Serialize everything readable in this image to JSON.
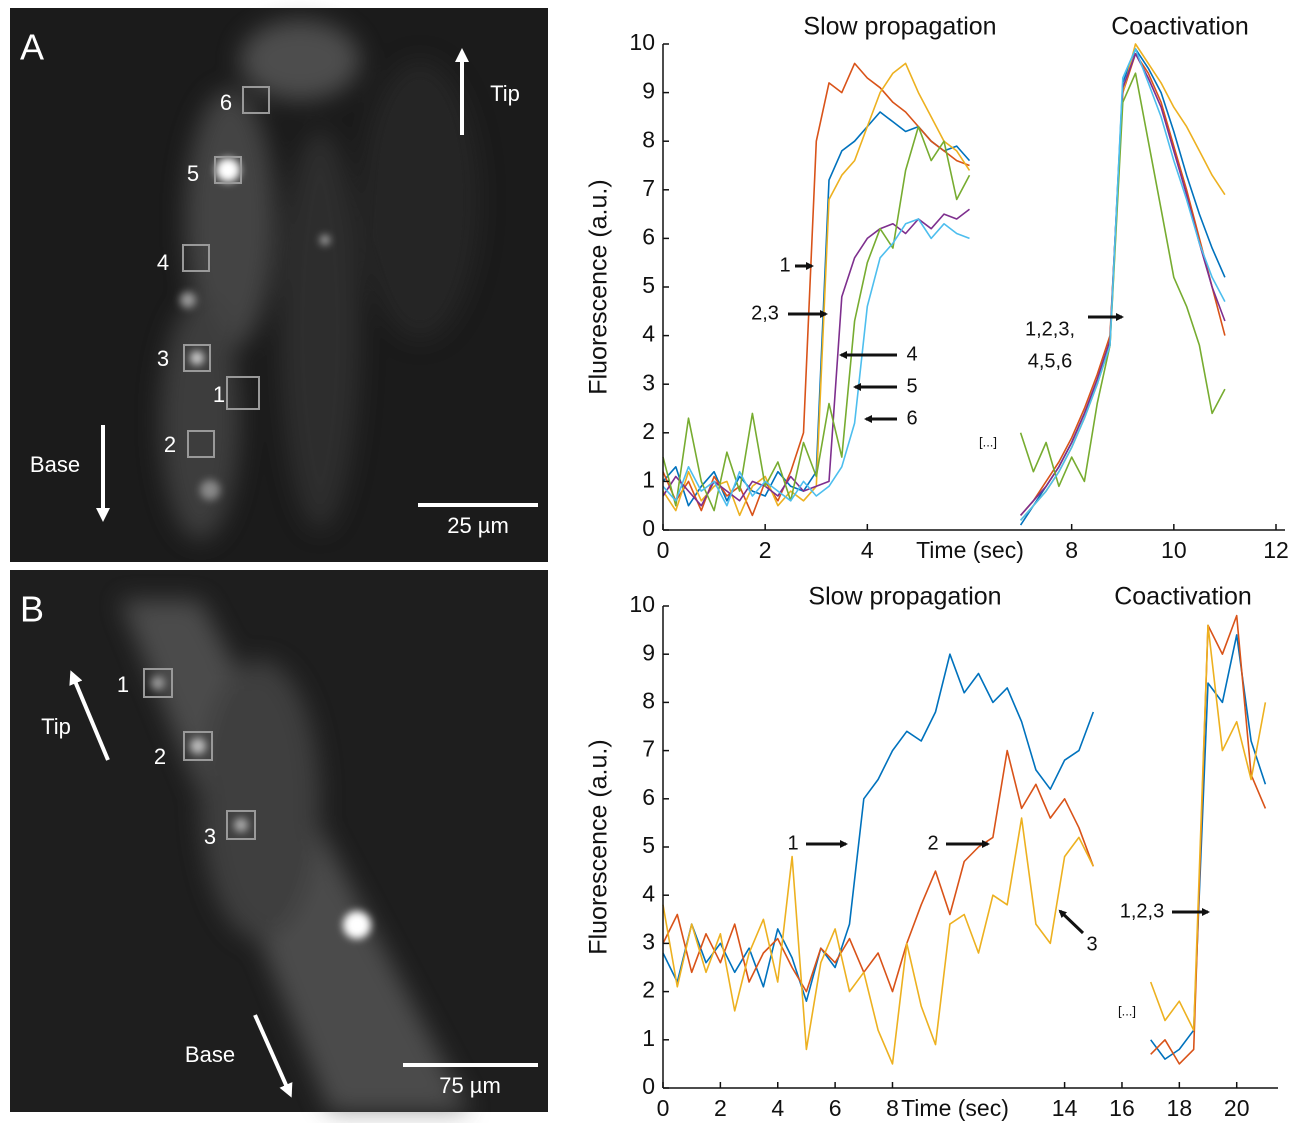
{
  "images": [
    {
      "letter": "A",
      "rois": [
        "6",
        "5",
        "4",
        "3",
        "1",
        "2"
      ],
      "tip": "Tip",
      "base": "Base",
      "scale_bar": "25 µm"
    },
    {
      "letter": "B",
      "rois": [
        "1",
        "2",
        "3"
      ],
      "tip": "Tip",
      "base": "Base",
      "scale_bar": "75 µm"
    }
  ],
  "chart_data": [
    {
      "type": "line",
      "titles": [
        "Slow propagation",
        "Coactivation"
      ],
      "x_label": "Time (sec)",
      "y_label": "Fluorescence (a.u.)",
      "annotations": [
        "1",
        "2,3",
        "4",
        "5",
        "6",
        "1,2,3,",
        "4,5,6",
        "[...]"
      ],
      "x": [
        0,
        0.25,
        0.5,
        0.75,
        1,
        1.25,
        1.5,
        1.75,
        2,
        2.25,
        2.5,
        2.75,
        3,
        3.25,
        3.5,
        3.75,
        4,
        4.25,
        4.5,
        4.75,
        5,
        5.25,
        5.5,
        5.75,
        6,
        6.5,
        7,
        7.25,
        7.5,
        7.75,
        8,
        8.25,
        8.5,
        8.75,
        9,
        9.25,
        9.5,
        9.75,
        10,
        10.25,
        10.5,
        10.75,
        11
      ],
      "xlim": [
        0,
        12
      ],
      "xticks": [
        0,
        2,
        4,
        8,
        10,
        12
      ],
      "ylim": [
        0,
        10
      ],
      "yticks": [
        0,
        1,
        2,
        3,
        4,
        5,
        6,
        7,
        8,
        9,
        10
      ],
      "series": [
        {
          "color": "#0072bd",
          "values": [
            1.0,
            1.3,
            0.5,
            0.9,
            1.2,
            0.6,
            1.1,
            0.8,
            0.7,
            1.2,
            0.9,
            0.8,
            1.2,
            7.2,
            7.8,
            8.0,
            8.3,
            8.6,
            8.4,
            8.2,
            8.3,
            8.0,
            7.8,
            7.9,
            7.6,
            null,
            0.1,
            0.5,
            0.9,
            1.3,
            1.8,
            2.4,
            3.0,
            3.9,
            9.2,
            9.9,
            9.5,
            9.0,
            8.2,
            7.3,
            6.5,
            5.8,
            5.2
          ]
        },
        {
          "color": "#d95319",
          "values": [
            1.2,
            0.6,
            1.0,
            0.4,
            1.1,
            0.7,
            0.9,
            0.3,
            1.0,
            0.6,
            1.2,
            2.0,
            8.0,
            9.2,
            9.0,
            9.6,
            9.3,
            9.1,
            8.8,
            8.6,
            8.3,
            8.0,
            7.8,
            7.6,
            7.5,
            null,
            0.3,
            0.6,
            1.0,
            1.4,
            1.9,
            2.5,
            3.2,
            4.0,
            9.0,
            9.8,
            9.4,
            8.8,
            7.9,
            7.0,
            6.0,
            5.0,
            4.0
          ]
        },
        {
          "color": "#edb120",
          "values": [
            0.8,
            0.4,
            1.2,
            0.6,
            0.9,
            1.0,
            0.3,
            0.9,
            1.1,
            0.5,
            0.8,
            0.6,
            0.9,
            6.8,
            7.3,
            7.6,
            8.3,
            9.0,
            9.4,
            9.6,
            9.0,
            8.5,
            8.0,
            7.8,
            7.4,
            null,
            0.2,
            0.5,
            0.8,
            1.2,
            1.7,
            2.3,
            3.0,
            3.8,
            9.0,
            10.0,
            9.6,
            9.2,
            8.7,
            8.3,
            7.8,
            7.3,
            6.9
          ]
        },
        {
          "color": "#7e2f8e",
          "values": [
            0.7,
            1.1,
            0.8,
            0.5,
            1.0,
            0.8,
            0.6,
            1.0,
            0.9,
            0.7,
            1.1,
            0.8,
            0.9,
            1.0,
            4.8,
            5.6,
            6.0,
            6.2,
            6.3,
            6.1,
            6.4,
            6.2,
            6.5,
            6.4,
            6.6,
            null,
            0.3,
            0.6,
            0.9,
            1.3,
            1.8,
            2.4,
            3.1,
            3.9,
            9.1,
            9.8,
            9.3,
            8.7,
            7.8,
            6.9,
            5.9,
            5.0,
            4.3
          ]
        },
        {
          "color": "#77ac30",
          "values": [
            1.5,
            0.5,
            2.3,
            1.0,
            0.4,
            1.6,
            0.8,
            2.4,
            0.9,
            1.4,
            0.6,
            1.8,
            1.1,
            2.6,
            1.5,
            4.3,
            5.5,
            6.2,
            5.8,
            7.4,
            8.3,
            7.6,
            8.0,
            6.8,
            7.3,
            null,
            2.0,
            1.2,
            1.8,
            0.9,
            1.5,
            1.0,
            2.6,
            3.8,
            8.8,
            9.4,
            8.0,
            6.6,
            5.2,
            4.6,
            3.8,
            2.4,
            2.9
          ]
        },
        {
          "color": "#4dbeee",
          "values": [
            0.9,
            0.6,
            1.3,
            0.8,
            1.0,
            0.5,
            1.2,
            0.7,
            1.0,
            0.8,
            0.6,
            1.0,
            0.7,
            0.9,
            1.3,
            2.2,
            4.6,
            5.6,
            5.9,
            6.3,
            6.4,
            6.0,
            6.3,
            6.1,
            6.0,
            null,
            0.2,
            0.5,
            0.8,
            1.2,
            1.7,
            2.3,
            3.0,
            3.8,
            9.3,
            9.9,
            9.2,
            8.5,
            7.6,
            6.8,
            5.9,
            5.2,
            4.7
          ]
        }
      ]
    },
    {
      "type": "line",
      "titles": [
        "Slow propagation",
        "Coactivation"
      ],
      "x_label": "Time (sec)",
      "y_label": "Fluorescence (a.u.)",
      "annotations": [
        "1",
        "2",
        "3",
        "1,2,3",
        "[...]"
      ],
      "x": [
        0,
        0.5,
        1,
        1.5,
        2,
        2.5,
        3,
        3.5,
        4,
        4.5,
        5,
        5.5,
        6,
        6.5,
        7,
        7.5,
        8,
        8.5,
        9,
        9.5,
        10,
        10.5,
        11,
        11.5,
        12,
        12.5,
        13,
        13.5,
        14,
        14.5,
        15,
        16,
        17,
        17.5,
        18,
        18.5,
        19,
        19.5,
        20,
        20.5,
        21
      ],
      "xlim": [
        0,
        21.3
      ],
      "xticks": [
        0,
        2,
        4,
        6,
        8,
        14,
        16,
        18,
        20
      ],
      "ylim": [
        0,
        10
      ],
      "yticks": [
        0,
        1,
        2,
        3,
        4,
        5,
        6,
        7,
        8,
        9,
        10
      ],
      "series": [
        {
          "color": "#0072bd",
          "values": [
            2.8,
            2.2,
            3.4,
            2.6,
            3.0,
            2.4,
            2.9,
            2.1,
            3.3,
            2.7,
            1.8,
            2.9,
            2.5,
            3.4,
            6.0,
            6.4,
            7.0,
            7.4,
            7.2,
            7.8,
            9.0,
            8.2,
            8.6,
            8.0,
            8.3,
            7.6,
            6.6,
            6.2,
            6.8,
            7.0,
            7.8,
            null,
            1.0,
            0.6,
            0.8,
            1.2,
            8.4,
            8.0,
            9.4,
            7.2,
            6.3
          ]
        },
        {
          "color": "#d95319",
          "values": [
            3.0,
            3.6,
            2.4,
            3.2,
            2.6,
            3.4,
            2.2,
            2.8,
            3.1,
            2.5,
            2.0,
            2.9,
            2.6,
            3.1,
            2.4,
            2.8,
            2.0,
            3.0,
            3.8,
            4.5,
            3.6,
            4.7,
            5.0,
            5.2,
            7.0,
            5.8,
            6.3,
            5.6,
            6.0,
            5.4,
            4.6,
            null,
            0.7,
            1.0,
            0.5,
            0.8,
            9.6,
            9.0,
            9.8,
            6.5,
            5.8
          ]
        },
        {
          "color": "#edb120",
          "values": [
            3.8,
            2.1,
            3.4,
            2.4,
            3.2,
            1.6,
            2.8,
            3.5,
            2.2,
            4.8,
            0.8,
            2.6,
            3.3,
            2.0,
            2.4,
            1.2,
            0.5,
            3.0,
            1.7,
            0.9,
            3.4,
            3.6,
            2.8,
            4.0,
            3.8,
            5.6,
            3.4,
            3.0,
            4.8,
            5.2,
            4.6,
            null,
            2.2,
            1.4,
            1.8,
            1.2,
            9.6,
            7.0,
            7.6,
            6.4,
            8.0
          ]
        }
      ]
    }
  ]
}
